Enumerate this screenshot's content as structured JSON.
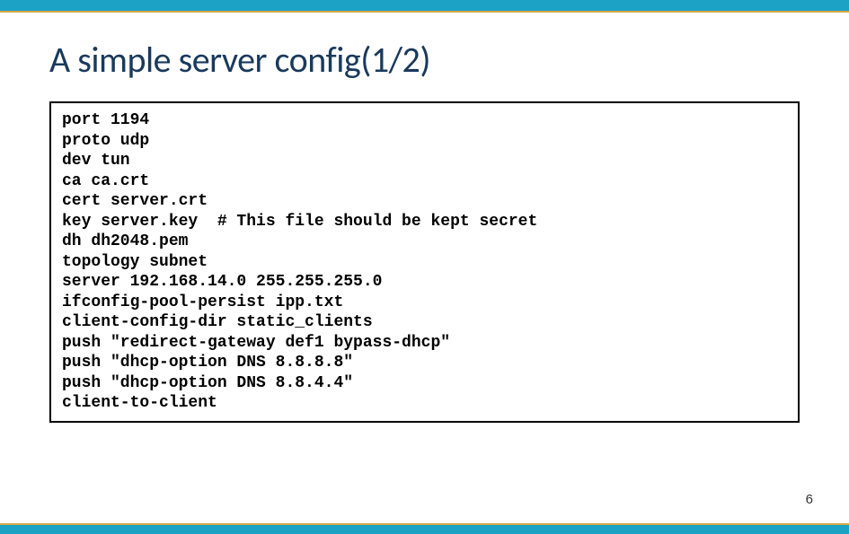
{
  "slide": {
    "title": "A simple server config(1/2)",
    "page_number": "6"
  },
  "code": {
    "lines": [
      "port 1194",
      "proto udp",
      "dev tun",
      "ca ca.crt",
      "cert server.crt",
      "key server.key  # This file should be kept secret",
      "dh dh2048.pem",
      "topology subnet",
      "server 192.168.14.0 255.255.255.0",
      "ifconfig-pool-persist ipp.txt",
      "client-config-dir static_clients",
      "push \"redirect-gateway def1 bypass-dhcp\"",
      "push \"dhcp-option DNS 8.8.8.8\"",
      "push \"dhcp-option DNS 8.8.4.4\"",
      "client-to-client"
    ]
  },
  "style": {
    "top_bar_color": "#1ba2c4",
    "accent_color": "#d4a849",
    "title_color": "#1a3a5c",
    "background_color": "#ffffff",
    "code_font": "Courier New",
    "code_fontsize": 18,
    "title_fontsize": 40
  }
}
